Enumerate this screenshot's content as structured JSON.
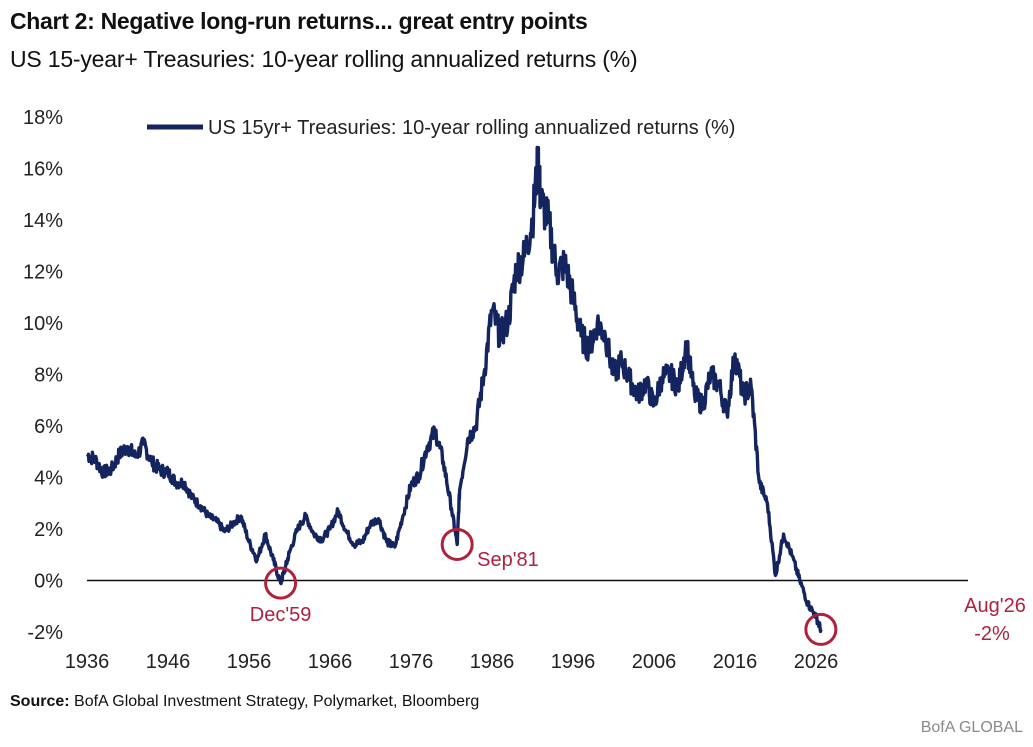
{
  "header": {
    "title": "Chart 2: Negative long-run returns... great entry points",
    "subtitle": "US 15-year+ Treasuries: 10-year rolling annualized returns (%)"
  },
  "footer": {
    "source_label": "Source:",
    "source_text": "BofA Global Investment Strategy, Polymarket, Bloomberg",
    "brand": "BofA GLOBAL"
  },
  "colors": {
    "series": "#14245e",
    "annotation": "#b0213c",
    "zero_line": "#111111"
  },
  "chart_data": {
    "type": "line",
    "title": "US 15-year+ Treasuries: 10-year rolling annualized returns (%)",
    "xlabel": "",
    "ylabel": "",
    "xlim": [
      1936,
      2030
    ],
    "ylim": [
      -2,
      18
    ],
    "x_ticks": [
      "1936",
      "1946",
      "1956",
      "1966",
      "1976",
      "1986",
      "1996",
      "2006",
      "2016",
      "2026"
    ],
    "y_ticks": [
      "-2%",
      "0%",
      "2%",
      "4%",
      "6%",
      "8%",
      "10%",
      "12%",
      "14%",
      "16%",
      "18%"
    ],
    "legend": {
      "position": "top",
      "entries": [
        "US 15yr+ Treasuries: 10-year rolling annualized returns (%)"
      ]
    },
    "grid": false,
    "series": [
      {
        "name": "US 15yr+ Treasuries: 10-year rolling annualized returns (%)",
        "x": [
          1936,
          1937,
          1938,
          1939,
          1940,
          1941,
          1942,
          1943,
          1944,
          1945,
          1946,
          1947,
          1948,
          1949,
          1950,
          1951,
          1952,
          1953,
          1954,
          1955,
          1956,
          1957,
          1958,
          1959,
          1959.9,
          1960.5,
          1961,
          1962,
          1963,
          1964,
          1965,
          1966,
          1967,
          1968,
          1969,
          1970,
          1971,
          1972,
          1973,
          1974,
          1975,
          1976,
          1977,
          1978,
          1979,
          1980,
          1981,
          1981.7,
          1982,
          1983,
          1984,
          1985,
          1986,
          1987,
          1988,
          1989,
          1990,
          1991,
          1991.7,
          1992,
          1993,
          1994,
          1995,
          1996,
          1997,
          1998,
          1999,
          2000,
          2001,
          2002,
          2003,
          2004,
          2005,
          2006,
          2007,
          2008,
          2009,
          2010,
          2011,
          2012,
          2013,
          2014,
          2015,
          2016,
          2017,
          2018,
          2019,
          2020,
          2021,
          2022,
          2023,
          2024,
          2025,
          2026,
          2026.6
        ],
        "y": [
          4.9,
          4.7,
          4.2,
          4.3,
          4.9,
          5.2,
          4.8,
          5.3,
          4.6,
          4.3,
          4.2,
          3.8,
          3.8,
          3.2,
          2.9,
          2.5,
          2.3,
          1.9,
          2.2,
          2.5,
          1.5,
          0.8,
          1.8,
          0.8,
          -0.1,
          0.5,
          1.1,
          2.0,
          2.5,
          1.8,
          1.6,
          2.0,
          2.7,
          1.9,
          1.4,
          1.5,
          2.2,
          2.4,
          1.5,
          1.3,
          2.5,
          3.7,
          4.1,
          5.2,
          5.8,
          4.6,
          2.8,
          1.4,
          3.5,
          5.5,
          6.0,
          8.0,
          10.5,
          9.5,
          10.1,
          12.1,
          12.6,
          14.0,
          16.3,
          14.8,
          13.9,
          12.0,
          12.3,
          11.0,
          9.5,
          9.0,
          10.0,
          9.5,
          8.0,
          8.5,
          7.8,
          7.2,
          7.7,
          6.8,
          7.9,
          8.0,
          7.5,
          9.2,
          7.2,
          6.8,
          8.0,
          7.6,
          6.5,
          8.8,
          7.2,
          7.5,
          3.8,
          3.0,
          0.2,
          1.8,
          1.0,
          0.0,
          -0.9,
          -1.4,
          -1.9
        ]
      }
    ],
    "annotations": [
      {
        "label": "Dec'59",
        "x": 1959.9,
        "y": -0.1
      },
      {
        "label": "Sep'81",
        "x": 1981.7,
        "y": 1.4
      },
      {
        "label": "Aug'26",
        "x": 2026.6,
        "y": -1.9
      },
      {
        "label": "-2%",
        "x": 2026.6,
        "y": -1.9
      }
    ]
  }
}
